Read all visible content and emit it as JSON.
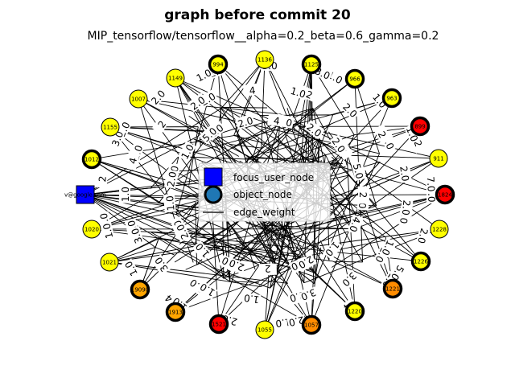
{
  "chart_data": {
    "type": "network",
    "title": "graph before commit 20",
    "subtitle": "MIP_tensorflow/tensorflow__alpha=0.2_beta=0.6_gamma=0.2",
    "legend": {
      "placement": "center",
      "entries": [
        {
          "label": "focus_user_node",
          "marker": "square",
          "color": "#0000ff"
        },
        {
          "label": "object_node",
          "marker": "circle",
          "color": "#1f77b4"
        },
        {
          "label": "edge_weight",
          "marker": "line",
          "color": "#000000"
        }
      ]
    },
    "focus_node": {
      "label": "v@google.com",
      "color": "#0000ff"
    },
    "object_nodes": [
      {
        "label": "1136",
        "color": "#ffff00",
        "bold_ring": false
      },
      {
        "label": "1125",
        "color": "#ffff00",
        "bold_ring": true
      },
      {
        "label": "966",
        "color": "#ffff00",
        "bold_ring": true
      },
      {
        "label": "963",
        "color": "#ffff00",
        "bold_ring": true
      },
      {
        "label": "899",
        "color": "#ff0000",
        "bold_ring": true
      },
      {
        "label": "911",
        "color": "#ffff00",
        "bold_ring": false
      },
      {
        "label": "1824",
        "color": "#ff0000",
        "bold_ring": true
      },
      {
        "label": "1228",
        "color": "#ffff00",
        "bold_ring": false
      },
      {
        "label": "1226",
        "color": "#ffff00",
        "bold_ring": true
      },
      {
        "label": "1221",
        "color": "#ff8c00",
        "bold_ring": true
      },
      {
        "label": "1220",
        "color": "#ffff00",
        "bold_ring": true
      },
      {
        "label": "1057",
        "color": "#ff8c00",
        "bold_ring": true
      },
      {
        "label": "1055",
        "color": "#ffff00",
        "bold_ring": false
      },
      {
        "label": "1521",
        "color": "#ff0000",
        "bold_ring": true
      },
      {
        "label": "1913",
        "color": "#ffa500",
        "bold_ring": true
      },
      {
        "label": "19090",
        "color": "#ffa500",
        "bold_ring": true
      },
      {
        "label": "1021",
        "color": "#ffff00",
        "bold_ring": false
      },
      {
        "label": "1020",
        "color": "#ffff00",
        "bold_ring": false
      },
      {
        "label": "1012",
        "color": "#ffff00",
        "bold_ring": true
      },
      {
        "label": "1155",
        "color": "#ffff00",
        "bold_ring": false
      },
      {
        "label": "1007",
        "color": "#ffff00",
        "bold_ring": false
      },
      {
        "label": "1149",
        "color": "#ffff00",
        "bold_ring": false
      },
      {
        "label": "994",
        "color": "#ffff00",
        "bold_ring": true
      }
    ],
    "edge_weight_labels": [
      "1.0",
      "1.0",
      "8.0",
      "1.0",
      "8.0",
      "1.0",
      "1.0",
      "2.0",
      "10",
      "4",
      "2.0",
      "3.0",
      "3.0",
      "2.0",
      "1.0",
      "1.0",
      "2.0",
      "2.0",
      "1.0",
      "2",
      "2",
      "1.0",
      "4.0",
      "5.0",
      "2",
      "2.0",
      "1.0",
      "2.0",
      "3.0",
      "2",
      "4",
      "1.0",
      "1.0",
      "2.0",
      "3.0",
      "1.0",
      "1.0",
      "1.0",
      "1.0",
      "2",
      "2",
      "2.0",
      "2.0",
      "4",
      "2.0",
      "3.0",
      "2.0",
      "5.0",
      "1.0",
      "2.0",
      "4.0",
      "7.0",
      "1.0",
      "2.0",
      "5.0",
      "3.0",
      "2.0",
      "2.0",
      "1.0",
      "2.0",
      "1.0",
      "3.0",
      "2.0",
      "1.0",
      "4",
      "5.0",
      "3.0",
      "2.0",
      "4",
      "1.0",
      "1.0",
      "2.0",
      "3.0",
      "2",
      "2",
      "1.0",
      "2.0"
    ]
  }
}
